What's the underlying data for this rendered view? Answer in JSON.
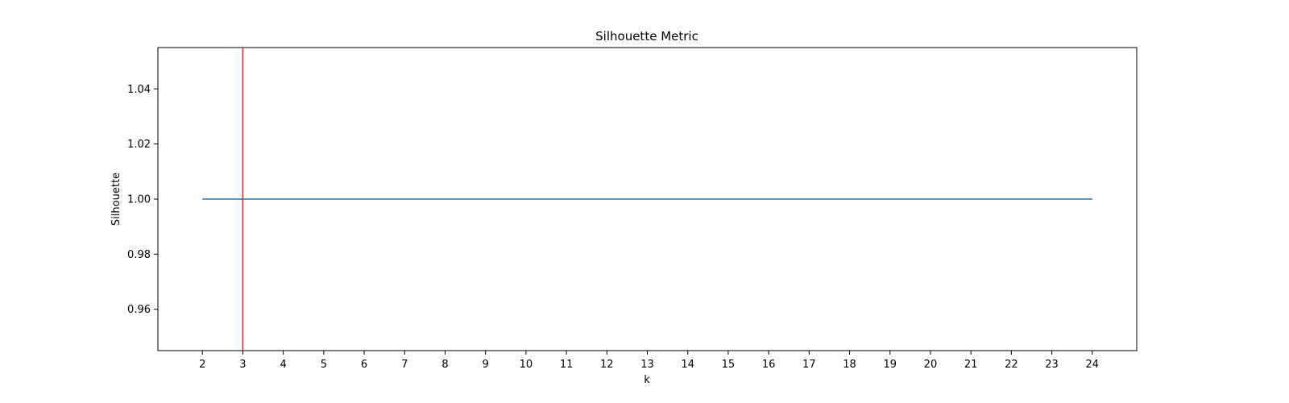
{
  "chart_data": {
    "type": "line",
    "title": "Silhouette Metric",
    "xlabel": "k",
    "ylabel": "Silhouette",
    "x": [
      2,
      3,
      4,
      5,
      6,
      7,
      8,
      9,
      10,
      11,
      12,
      13,
      14,
      15,
      16,
      17,
      18,
      19,
      20,
      21,
      22,
      23,
      24
    ],
    "series": [
      {
        "values": [
          1.0,
          1.0,
          1.0,
          1.0,
          1.0,
          1.0,
          1.0,
          1.0,
          1.0,
          1.0,
          1.0,
          1.0,
          1.0,
          1.0,
          1.0,
          1.0,
          1.0,
          1.0,
          1.0,
          1.0,
          1.0,
          1.0,
          1.0
        ],
        "color": "#1f77b4"
      }
    ],
    "vline": {
      "x": 3,
      "color": "#d62728"
    },
    "xlim": [
      0.9,
      25.1
    ],
    "ylim": [
      0.945,
      1.055
    ],
    "xticks": [
      2,
      3,
      4,
      5,
      6,
      7,
      8,
      9,
      10,
      11,
      12,
      13,
      14,
      15,
      16,
      17,
      18,
      19,
      20,
      21,
      22,
      23,
      24
    ],
    "xtick_labels": [
      "2",
      "3",
      "4",
      "5",
      "6",
      "7",
      "8",
      "9",
      "10",
      "11",
      "12",
      "13",
      "14",
      "15",
      "16",
      "17",
      "18",
      "19",
      "20",
      "21",
      "22",
      "23",
      "24"
    ],
    "yticks": [
      0.96,
      0.98,
      1.0,
      1.02,
      1.04
    ],
    "ytick_labels": [
      "0.96",
      "0.98",
      "1.00",
      "1.02",
      "1.04"
    ],
    "grid": false,
    "legend": "none"
  }
}
